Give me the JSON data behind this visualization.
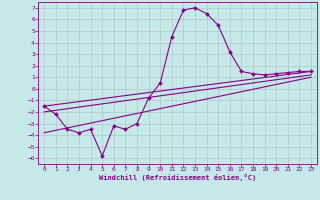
{
  "xlabel": "Windchill (Refroidissement éolien,°C)",
  "x_ticks": [
    0,
    1,
    2,
    3,
    4,
    5,
    6,
    7,
    8,
    9,
    10,
    11,
    12,
    13,
    14,
    15,
    16,
    17,
    18,
    19,
    20,
    21,
    22,
    23
  ],
  "ylim": [
    -6.5,
    7.5
  ],
  "xlim": [
    -0.5,
    23.5
  ],
  "yticks": [
    -6,
    -5,
    -4,
    -3,
    -2,
    -1,
    0,
    1,
    2,
    3,
    4,
    5,
    6,
    7
  ],
  "bg_color": "#c5e8e8",
  "line_color": "#880088",
  "grid_color": "#b0c8c8",
  "series_main": {
    "x": [
      0,
      1,
      2,
      3,
      4,
      5,
      6,
      7,
      8,
      9,
      10,
      11,
      12,
      13,
      14,
      15,
      16,
      17,
      18,
      19,
      20,
      21,
      22,
      23
    ],
    "y": [
      -1.5,
      -2.2,
      -3.5,
      -3.8,
      -3.5,
      -5.8,
      -3.2,
      -3.5,
      -3.0,
      -0.8,
      0.5,
      4.5,
      6.8,
      7.0,
      6.5,
      5.5,
      3.2,
      1.5,
      1.3,
      1.2,
      1.3,
      1.4,
      1.5,
      1.5
    ]
  },
  "trend_lines": [
    {
      "x": [
        0,
        23
      ],
      "y": [
        -1.5,
        1.5
      ]
    },
    {
      "x": [
        0,
        23
      ],
      "y": [
        -2.0,
        1.2
      ]
    },
    {
      "x": [
        0,
        23
      ],
      "y": [
        -3.8,
        1.0
      ]
    }
  ]
}
